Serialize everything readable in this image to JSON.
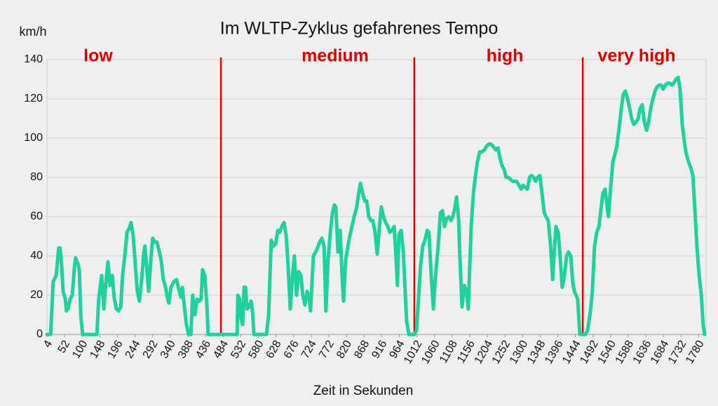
{
  "chart_data": {
    "type": "line",
    "title": "Im WLTP-Zyklus gefahrenes Tempo",
    "y_label": "km/h",
    "x_label": "Zeit in Sekunden",
    "annotations": [
      "low",
      "medium",
      "high",
      "very high"
    ],
    "phase_boundaries": [
      478,
      1005,
      1464
    ],
    "boundary_color": "#e00000",
    "grid": true,
    "xlim": [
      4,
      1800
    ],
    "ylim": [
      0,
      140
    ],
    "yticks": [
      0,
      20,
      40,
      60,
      80,
      100,
      120,
      140
    ],
    "xticks": [
      4,
      52,
      100,
      148,
      196,
      244,
      292,
      340,
      388,
      436,
      484,
      532,
      580,
      628,
      676,
      724,
      772,
      820,
      868,
      916,
      964,
      1012,
      1060,
      1108,
      1156,
      1204,
      1252,
      1300,
      1348,
      1396,
      1444,
      1492,
      1540,
      1588,
      1636,
      1684,
      1732,
      1780
    ],
    "series": [
      {
        "color": "#1fd19c",
        "x": [
          4,
          14,
          21,
          29,
          36,
          40,
          44,
          48,
          54,
          57,
          61,
          67,
          73,
          79,
          82,
          88,
          92,
          96,
          101,
          140,
          145,
          153,
          159,
          164,
          170,
          176,
          182,
          187,
          193,
          199,
          205,
          210,
          216,
          222,
          228,
          233,
          239,
          245,
          250,
          256,
          262,
          268,
          271,
          275,
          281,
          287,
          292,
          298,
          304,
          310,
          315,
          321,
          327,
          333,
          336,
          342,
          350,
          357,
          363,
          369,
          373,
          378,
          384,
          390,
          396,
          401,
          407,
          413,
          419,
          424,
          428,
          434,
          440,
          443,
          522,
          524,
          529,
          533,
          537,
          541,
          545,
          549,
          554,
          560,
          564,
          568,
          602,
          608,
          615,
          621,
          627,
          633,
          638,
          644,
          650,
          656,
          661,
          667,
          673,
          678,
          684,
          690,
          696,
          701,
          707,
          713,
          719,
          722,
          730,
          736,
          741,
          747,
          753,
          759,
          764,
          770,
          776,
          782,
          787,
          791,
          797,
          803,
          808,
          812,
          818,
          824,
          829,
          835,
          841,
          847,
          852,
          858,
          864,
          870,
          875,
          881,
          887,
          892,
          898,
          904,
          910,
          915,
          921,
          927,
          933,
          938,
          944,
          950,
          955,
          959,
          963,
          969,
          975,
          980,
          984,
          990,
          998,
          1005,
          1011,
          1017,
          1022,
          1028,
          1034,
          1040,
          1045,
          1051,
          1057,
          1062,
          1070,
          1076,
          1082,
          1087,
          1093,
          1099,
          1105,
          1110,
          1116,
          1120,
          1126,
          1129,
          1135,
          1141,
          1147,
          1152,
          1160,
          1166,
          1171,
          1177,
          1183,
          1189,
          1196,
          1202,
          1208,
          1213,
          1219,
          1227,
          1233,
          1238,
          1244,
          1250,
          1255,
          1261,
          1267,
          1273,
          1278,
          1284,
          1290,
          1296,
          1301,
          1307,
          1313,
          1319,
          1324,
          1330,
          1336,
          1341,
          1347,
          1353,
          1359,
          1364,
          1370,
          1376,
          1382,
          1385,
          1391,
          1397,
          1403,
          1408,
          1414,
          1420,
          1425,
          1431,
          1437,
          1441,
          1446,
          1450,
          1456,
          1460,
          1471,
          1477,
          1485,
          1490,
          1496,
          1502,
          1508,
          1513,
          1519,
          1525,
          1531,
          1534,
          1540,
          1546,
          1552,
          1557,
          1563,
          1569,
          1574,
          1580,
          1586,
          1592,
          1597,
          1603,
          1609,
          1615,
          1620,
          1626,
          1632,
          1638,
          1643,
          1649,
          1655,
          1661,
          1666,
          1672,
          1678,
          1683,
          1689,
          1695,
          1701,
          1706,
          1712,
          1718,
          1724,
          1729,
          1735,
          1741,
          1746,
          1752,
          1758,
          1764,
          1769,
          1775,
          1781,
          1787,
          1792,
          1796
        ],
        "values": [
          0,
          0,
          27,
          30,
          44,
          44,
          35,
          22,
          18,
          12,
          13,
          18,
          20,
          35,
          39,
          36,
          33,
          10,
          0,
          0,
          18,
          30,
          13,
          25,
          37,
          25,
          30,
          19,
          13,
          12,
          14,
          30,
          40,
          52,
          54,
          57,
          50,
          35,
          22,
          17,
          28,
          42,
          45,
          36,
          22,
          38,
          49,
          47,
          47,
          42,
          38,
          28,
          24,
          18,
          16,
          24,
          27,
          28,
          23,
          19,
          24,
          15,
          5,
          0,
          0,
          20,
          10,
          18,
          17,
          18,
          33,
          30,
          14,
          0,
          0,
          20,
          18,
          8,
          5,
          24,
          24,
          13,
          14,
          17,
          12,
          0,
          0,
          10,
          48,
          45,
          46,
          53,
          52,
          55,
          57,
          50,
          35,
          13,
          30,
          40,
          20,
          32,
          30,
          20,
          15,
          22,
          18,
          12,
          40,
          42,
          44,
          47,
          49,
          45,
          12,
          38,
          52,
          62,
          66,
          65,
          42,
          53,
          30,
          17,
          38,
          45,
          50,
          55,
          60,
          64,
          70,
          77,
          72,
          68,
          68,
          60,
          58,
          58,
          52,
          41,
          55,
          65,
          60,
          57,
          55,
          52,
          53,
          55,
          40,
          25,
          51,
          53,
          42,
          22,
          7,
          0,
          0,
          0,
          2,
          20,
          35,
          45,
          48,
          53,
          52,
          30,
          13,
          28,
          45,
          62,
          63,
          55,
          59,
          60,
          58,
          60,
          65,
          70,
          58,
          40,
          14,
          25,
          22,
          13,
          55,
          72,
          80,
          88,
          93,
          93,
          94,
          96,
          97,
          97,
          96,
          94,
          95,
          90,
          86,
          84,
          80,
          80,
          79,
          78,
          78,
          78,
          76,
          74,
          76,
          75,
          74,
          80,
          81,
          80,
          78,
          80,
          81,
          72,
          62,
          60,
          58,
          46,
          28,
          38,
          55,
          52,
          38,
          24,
          30,
          40,
          42,
          40,
          26,
          22,
          20,
          18,
          0,
          0,
          0,
          2,
          12,
          22,
          45,
          52,
          55,
          63,
          72,
          74,
          64,
          60,
          75,
          88,
          92,
          96,
          105,
          115,
          122,
          124,
          120,
          115,
          110,
          107,
          108,
          110,
          115,
          117,
          108,
          104,
          108,
          115,
          120,
          124,
          126,
          127,
          127,
          125,
          127,
          128,
          128,
          127,
          128,
          130,
          131,
          125,
          107,
          98,
          92,
          88,
          85,
          81,
          65,
          45,
          30,
          20,
          5,
          0
        ]
      }
    ]
  }
}
